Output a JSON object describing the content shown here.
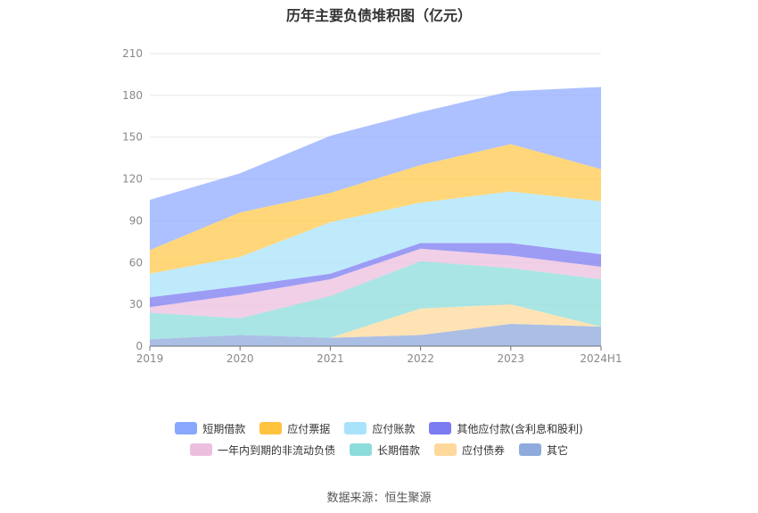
{
  "chart_data": {
    "type": "area",
    "title": "历年主要负债堆积图（亿元）",
    "categories": [
      "2019",
      "2020",
      "2021",
      "2022",
      "2023",
      "2024H1"
    ],
    "ylim": [
      0,
      210
    ],
    "yticks": [
      "0",
      "30",
      "60",
      "90",
      "120",
      "150",
      "180",
      "210"
    ],
    "stacked": true,
    "grid": true,
    "legend_position": "bottom",
    "series": [
      {
        "name": "其它",
        "color": "#8faadc",
        "values": [
          5,
          8,
          6,
          8,
          16,
          14
        ]
      },
      {
        "name": "应付债券",
        "color": "#ffd99c",
        "values": [
          0,
          0,
          0,
          19,
          14,
          0
        ]
      },
      {
        "name": "长期借款",
        "color": "#8cdcdb",
        "values": [
          19,
          12,
          30,
          34,
          26,
          34
        ]
      },
      {
        "name": "一年内到期的非流动负债",
        "color": "#ecbfde",
        "values": [
          4,
          17,
          12,
          9,
          9,
          9
        ]
      },
      {
        "name": "其他应付款(含利息和股利)",
        "color": "#7b7bf2",
        "values": [
          7,
          6,
          4,
          4,
          9,
          9
        ]
      },
      {
        "name": "应付账款",
        "color": "#a9e3fb",
        "values": [
          17,
          21,
          37,
          29,
          37,
          38
        ]
      },
      {
        "name": "应付票据",
        "color": "#ffc94d",
        "values": [
          17,
          32,
          21,
          27,
          34,
          23
        ]
      },
      {
        "name": "短期借款",
        "color": "#91abff",
        "values": [
          36,
          28,
          41,
          38,
          38,
          59
        ]
      }
    ]
  },
  "legend": {
    "rows": [
      [
        {
          "label": "短期借款",
          "color": "#88a8ff"
        },
        {
          "label": "应付票据",
          "color": "#ffc33d"
        },
        {
          "label": "应付账款",
          "color": "#a9e3fb"
        },
        {
          "label": "其他应付款(含利息和股利)",
          "color": "#7b7bf2"
        }
      ],
      [
        {
          "label": "一年内到期的非流动负债",
          "color": "#ecbfde"
        },
        {
          "label": "长期借款",
          "color": "#8cdcdb"
        },
        {
          "label": "应付债券",
          "color": "#ffd99c"
        },
        {
          "label": "其它",
          "color": "#8faadc"
        }
      ]
    ]
  },
  "source": "数据来源：恒生聚源"
}
